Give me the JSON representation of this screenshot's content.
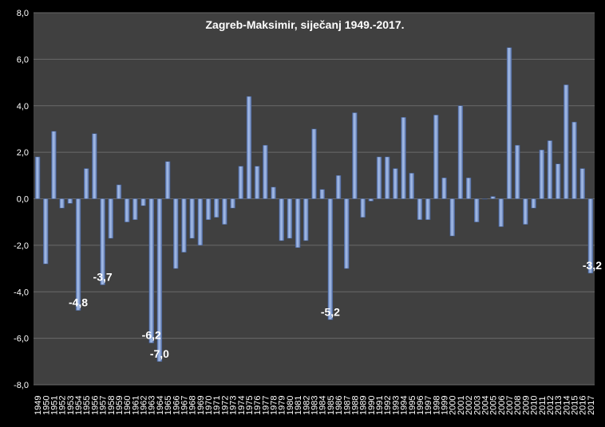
{
  "chart_data": {
    "type": "bar",
    "title": "Zagreb-Maksimir, siječanj 1949.-2017.",
    "xlabel": "",
    "ylabel": "",
    "ylim": [
      -8,
      8
    ],
    "yticks": [
      "8,0",
      "6,0",
      "4,0",
      "2,0",
      "0,0",
      "-2,0",
      "-4,0",
      "-6,0",
      "-8,0"
    ],
    "grid": true,
    "colors": {
      "background": "#000000",
      "plot_area": "#404040",
      "bar": "#8ea9dc",
      "grid": "#6a6a6a"
    },
    "categories": [
      "1949",
      "1950",
      "1951",
      "1952",
      "1953",
      "1954",
      "1955",
      "1956",
      "1957",
      "1958",
      "1959",
      "1960",
      "1961",
      "1962",
      "1963",
      "1964",
      "1965",
      "1966",
      "1967",
      "1968",
      "1969",
      "1970",
      "1971",
      "1972",
      "1973",
      "1974",
      "1975",
      "1976",
      "1977",
      "1978",
      "1979",
      "1980",
      "1981",
      "1982",
      "1983",
      "1984",
      "1985",
      "1986",
      "1987",
      "1988",
      "1989",
      "1990",
      "1991",
      "1992",
      "1993",
      "1994",
      "1995",
      "1996",
      "1997",
      "1998",
      "1999",
      "2000",
      "2001",
      "2002",
      "2003",
      "2004",
      "2005",
      "2006",
      "2007",
      "2008",
      "2009",
      "2010",
      "2011",
      "2012",
      "2013",
      "2014",
      "2015",
      "2016",
      "2017"
    ],
    "values": [
      1.8,
      -2.8,
      2.9,
      -0.4,
      -0.2,
      -4.8,
      1.3,
      2.8,
      -3.7,
      -1.7,
      0.6,
      -1.0,
      -0.9,
      -0.3,
      -6.2,
      -7.0,
      1.6,
      -3.0,
      -2.3,
      -1.7,
      -2.0,
      -0.9,
      -0.8,
      -1.1,
      -0.4,
      1.4,
      4.4,
      1.4,
      2.3,
      0.5,
      -1.8,
      -1.7,
      -2.1,
      -1.8,
      3.0,
      0.4,
      -5.2,
      1.0,
      -3.0,
      3.7,
      -0.8,
      -0.1,
      1.8,
      1.8,
      1.3,
      3.5,
      1.1,
      -0.9,
      -0.9,
      3.6,
      0.9,
      -1.6,
      4.0,
      0.9,
      -1.0,
      0.0,
      0.1,
      -1.2,
      6.5,
      2.3,
      -1.1,
      -0.4,
      2.1,
      2.5,
      1.5,
      4.9,
      3.3,
      1.3,
      -3.2
    ],
    "annotations": [
      {
        "category": "1954",
        "text": "-4,8"
      },
      {
        "category": "1957",
        "text": "-3,7"
      },
      {
        "category": "1963",
        "text": "-6,2"
      },
      {
        "category": "1964",
        "text": "-7,0"
      },
      {
        "category": "1985",
        "text": "-5,2"
      },
      {
        "category": "2017",
        "text": "-3,2"
      }
    ]
  }
}
